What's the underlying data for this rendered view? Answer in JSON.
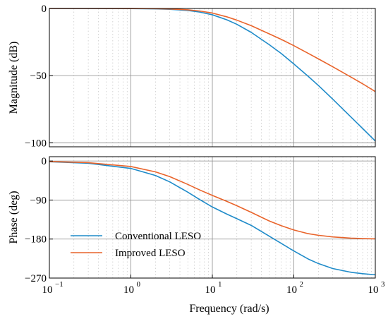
{
  "chart_data": {
    "type": "line",
    "x_scale": "log",
    "xlim": [
      0.1,
      1000
    ],
    "xlabel": "Frequency (rad/s)",
    "x_tick_labels": [
      "10",
      "10",
      "10",
      "10",
      "10"
    ],
    "x_tick_exponents": [
      "−1",
      "0",
      "1",
      "2",
      "3"
    ],
    "grid": true,
    "legend": {
      "placement": "bottom-left of phase panel",
      "entries": [
        {
          "name": "Conventional LESO",
          "color": "#1f8bc9"
        },
        {
          "name": "Improved LESO",
          "color": "#e9642b"
        }
      ]
    },
    "panels": [
      {
        "name": "magnitude",
        "ylabel": "Magnitude (dB)",
        "ylim": [
          -103,
          0
        ],
        "yticks": [
          0,
          -50,
          -100
        ],
        "ytick_labels": [
          "0",
          "−50",
          "−100"
        ],
        "series": [
          {
            "name": "Conventional LESO",
            "color": "#1f8bc9",
            "x": [
              0.1,
              0.3,
              1,
              2,
              3,
              5,
              7,
              10,
              15,
              20,
              30,
              50,
              70,
              100,
              150,
              200,
              300,
              500,
              700,
              1000
            ],
            "y": [
              0,
              0,
              -0.1,
              -0.3,
              -0.6,
              -1.5,
              -2.7,
              -4.7,
              -8.4,
              -11.8,
              -17.8,
              -27.0,
              -33.5,
              -41.3,
              -50.5,
              -57.3,
              -67.5,
              -80.7,
              -89.4,
              -98.7
            ]
          },
          {
            "name": "Improved LESO",
            "color": "#e9642b",
            "x": [
              0.1,
              0.3,
              1,
              2,
              3,
              5,
              7,
              10,
              15,
              20,
              30,
              50,
              70,
              100,
              150,
              200,
              300,
              500,
              700,
              1000
            ],
            "y": [
              0,
              0,
              -0.05,
              -0.2,
              -0.4,
              -1.0,
              -1.9,
              -3.4,
              -6.2,
              -8.7,
              -12.8,
              -18.9,
              -23.0,
              -27.7,
              -33.4,
              -37.5,
              -43.4,
              -51.0,
              -56.1,
              -61.9
            ]
          }
        ]
      },
      {
        "name": "phase",
        "ylabel": "Phase (deg)",
        "ylim": [
          -270,
          10
        ],
        "yticks": [
          0,
          -90,
          -180,
          -270
        ],
        "ytick_labels": [
          "0",
          "−90",
          "−180",
          "−270"
        ],
        "series": [
          {
            "name": "Conventional LESO",
            "color": "#1f8bc9",
            "x": [
              0.1,
              0.3,
              1,
              2,
              3,
              5,
              7,
              10,
              15,
              20,
              30,
              50,
              70,
              100,
              150,
              200,
              300,
              500,
              700,
              1000
            ],
            "y": [
              -1.7,
              -5.1,
              -17.1,
              -33.4,
              -48.1,
              -71.9,
              -89.0,
              -106.0,
              -122.3,
              -133.0,
              -148.5,
              -173.4,
              -190.0,
              -207.4,
              -226.0,
              -236.5,
              -248.0,
              -256.6,
              -259.9,
              -262.5
            ]
          },
          {
            "name": "Improved LESO",
            "color": "#e9642b",
            "x": [
              0.1,
              0.3,
              1,
              2,
              3,
              5,
              7,
              10,
              15,
              20,
              30,
              50,
              70,
              100,
              150,
              200,
              300,
              500,
              700,
              1000
            ],
            "y": [
              -1.3,
              -3.8,
              -12.7,
              -25.0,
              -36.0,
              -54.0,
              -66.8,
              -79.4,
              -93.0,
              -103.1,
              -118.4,
              -138.3,
              -149.2,
              -159.1,
              -167.6,
              -171.3,
              -175.1,
              -177.9,
              -178.9,
              -179.6
            ]
          }
        ]
      }
    ]
  }
}
